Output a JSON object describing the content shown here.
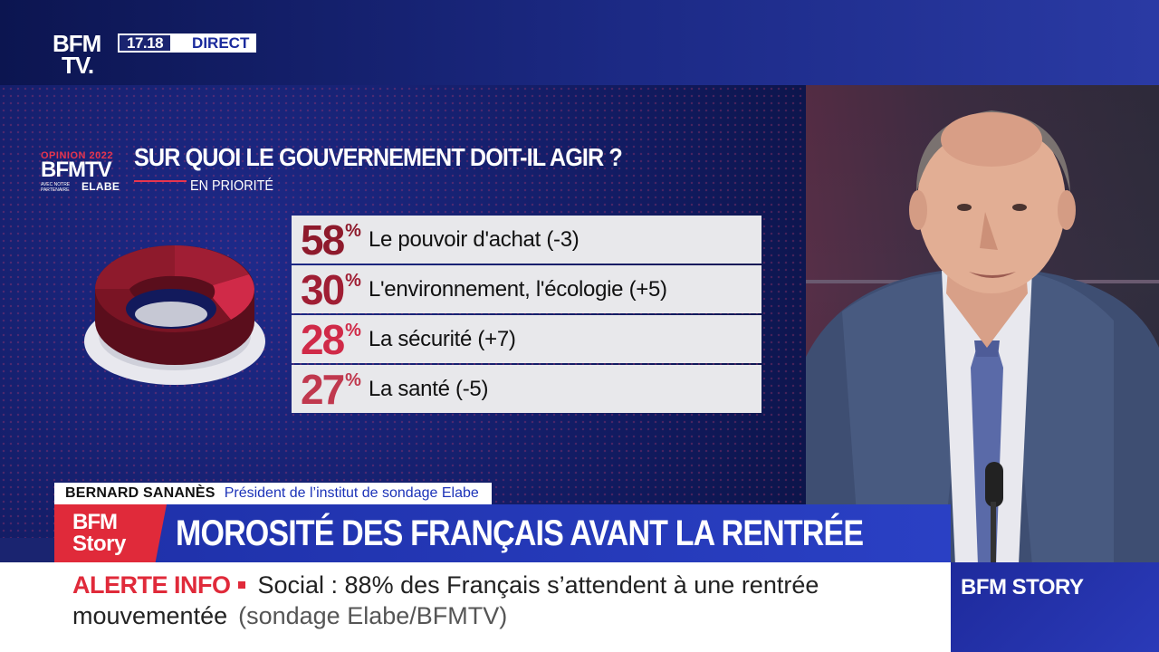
{
  "header": {
    "logo_line1": "BFM",
    "logo_line2": "TV.",
    "time": "17.18",
    "live_label": "DIRECT"
  },
  "graphic": {
    "opinion_logo": {
      "line1": "OPINION 2022",
      "line2": "BFMTV",
      "small": "AVEC NOTRE PARTENAIRE",
      "partner": "ELABE"
    },
    "title": "SUR QUOI LE GOUVERNEMENT DOIT-IL AGIR ?",
    "subtitle": "EN PRIORITÉ",
    "results": [
      {
        "value": 58,
        "percent_text": "58",
        "percent_symbol": "%",
        "label": "Le pouvoir d'achat (-3)",
        "color": "#8e1a2c"
      },
      {
        "value": 30,
        "percent_text": "30",
        "percent_symbol": "%",
        "label": "L'environnement, l'écologie (+5)",
        "color": "#a01e34"
      },
      {
        "value": 28,
        "percent_text": "28",
        "percent_symbol": "%",
        "label": "La sécurité (+7)",
        "color": "#d02a48"
      },
      {
        "value": 27,
        "percent_text": "27",
        "percent_symbol": "%",
        "label": "La santé (-5)",
        "color": "#c0384e"
      }
    ]
  },
  "guest": {
    "name": "BERNARD SANANÈS",
    "role": "Président de l’institut de sondage Elabe"
  },
  "headline": {
    "logo_line1": "BFM",
    "logo_line2": "Story",
    "text": "MOROSITÉ DES FRANÇAIS AVANT LA RENTRÉE"
  },
  "ticker": {
    "alert_label": "ALERTE INFO",
    "text_line1": "Social : 88% des Français s’attendent à une rentrée",
    "text_line2": "mouvementée",
    "source": "(sondage Elabe/BFMTV)"
  },
  "channel": {
    "name": "BFM STORY"
  }
}
